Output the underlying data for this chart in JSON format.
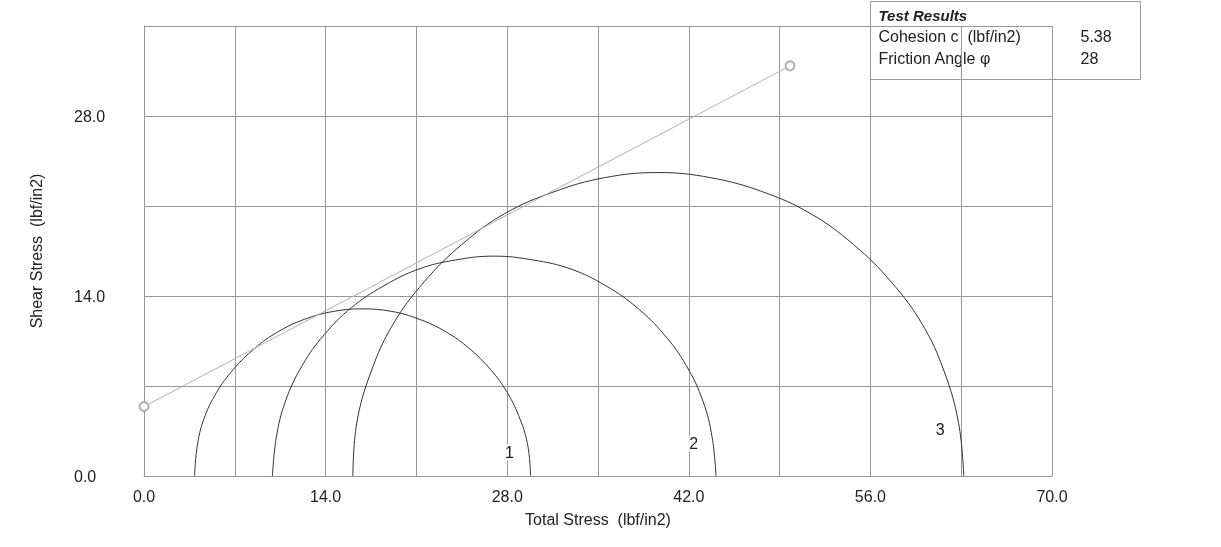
{
  "chart_data": {
    "type": "line",
    "xlabel": "Total Stress  (lbf/in2)",
    "ylabel": "Shear Stress  (lbf/in2)",
    "xlim": [
      0,
      70
    ],
    "ylim": [
      0,
      35
    ],
    "xticks": [
      {
        "value": 0,
        "label": "0.0"
      },
      {
        "value": 7,
        "label": null
      },
      {
        "value": 14,
        "label": "14.0"
      },
      {
        "value": 21,
        "label": null
      },
      {
        "value": 28,
        "label": "28.0"
      },
      {
        "value": 35,
        "label": null
      },
      {
        "value": 42,
        "label": "42.0"
      },
      {
        "value": 49,
        "label": null
      },
      {
        "value": 56,
        "label": "56.0"
      },
      {
        "value": 63,
        "label": null
      },
      {
        "value": 70,
        "label": "70.0"
      }
    ],
    "yticks": [
      {
        "value": 0,
        "label": "0.0"
      },
      {
        "value": 7,
        "label": null
      },
      {
        "value": 14,
        "label": "14.0"
      },
      {
        "value": 21,
        "label": null
      },
      {
        "value": 28,
        "label": "28.0"
      },
      {
        "value": 35,
        "label": null
      }
    ],
    "grid": true,
    "series": [
      {
        "name": "1",
        "color": "#333333",
        "marker": "none",
        "x": [
          3.9,
          4.1,
          4.6,
          5.6,
          6.9,
          8.5,
          10.3,
          12.4,
          14.6,
          16.8,
          19.1,
          21.2,
          23.3,
          25.1,
          26.7,
          28.0,
          29.0,
          29.6,
          29.8
        ],
        "values": [
          0,
          2.3,
          4.4,
          6.5,
          8.3,
          9.9,
          11.2,
          12.2,
          12.8,
          13.0,
          12.8,
          12.2,
          11.2,
          9.9,
          8.3,
          6.5,
          4.4,
          2.3,
          0
        ]
      },
      {
        "name": "2",
        "color": "#333333",
        "marker": "none",
        "x": [
          9.9,
          10.2,
          10.9,
          12.2,
          13.9,
          16.0,
          18.5,
          21.2,
          24.0,
          27.0,
          30.0,
          32.9,
          35.6,
          38.0,
          40.1,
          41.8,
          43.1,
          43.8,
          44.1
        ],
        "values": [
          0,
          3.0,
          5.8,
          8.6,
          11.0,
          13.1,
          14.8,
          16.1,
          16.8,
          17.1,
          16.8,
          16.1,
          14.8,
          13.1,
          11.0,
          8.6,
          5.8,
          3.0,
          0
        ]
      },
      {
        "name": "3",
        "color": "#333333",
        "marker": "none",
        "x": [
          16.1,
          16.4,
          17.5,
          19.2,
          21.6,
          24.5,
          27.8,
          31.6,
          35.5,
          39.6,
          43.7,
          47.7,
          51.4,
          54.7,
          57.6,
          60.0,
          61.7,
          62.8,
          63.2
        ],
        "values": [
          0,
          4.1,
          8.1,
          11.8,
          15.1,
          18.0,
          20.4,
          22.1,
          23.2,
          23.6,
          23.2,
          22.1,
          20.4,
          18.0,
          15.1,
          11.8,
          8.1,
          4.1,
          0
        ]
      },
      {
        "color": "#b0b0b0",
        "marker": "circle",
        "x": [
          0,
          49.8
        ],
        "values": [
          5.4,
          31.9
        ]
      }
    ],
    "annotations": [
      "Test Results",
      "Cohesion c  (lbf/in2)",
      "5.38",
      "Friction Angle φ",
      "28"
    ]
  }
}
